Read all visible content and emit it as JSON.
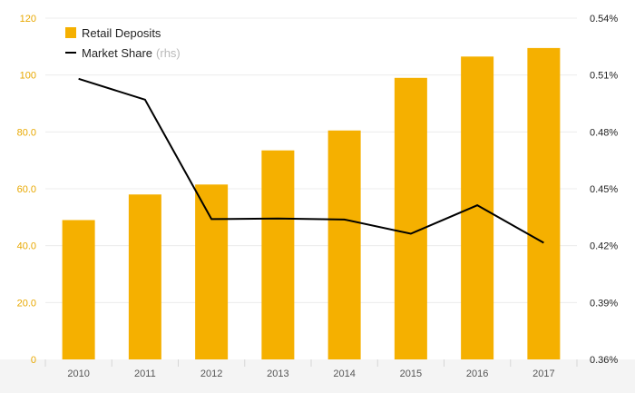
{
  "chart_data": {
    "type": "bar",
    "categories": [
      "2010",
      "2011",
      "2012",
      "2013",
      "2014",
      "2015",
      "2016",
      "2017"
    ],
    "series": [
      {
        "name": "Retail Deposits",
        "type": "bar",
        "axis": "left",
        "color": "#f5b000",
        "values": [
          49,
          58,
          61.5,
          73.5,
          80.5,
          99,
          106.5,
          109.5
        ]
      },
      {
        "name": "Market Share",
        "type": "line",
        "axis": "right",
        "color": "#000000",
        "values": [
          0.508,
          0.497,
          0.434,
          0.4343,
          0.4338,
          0.4263,
          0.4413,
          0.4215
        ]
      }
    ],
    "legend_note": "(rhs)",
    "left_axis": {
      "range": [
        0,
        120
      ],
      "ticks": [
        0,
        20,
        40,
        60,
        80,
        100,
        120
      ],
      "tick_labels": [
        "0",
        "20.0",
        "40.0",
        "60.0",
        "80.0",
        "100",
        "120"
      ],
      "label_color": "#e8a800"
    },
    "right_axis": {
      "range": [
        0.36,
        0.54
      ],
      "ticks": [
        0.36,
        0.39,
        0.42,
        0.45,
        0.48,
        0.51,
        0.54
      ],
      "tick_labels": [
        "0.36%",
        "0.39%",
        "0.42%",
        "0.45%",
        "0.48%",
        "0.51%",
        "0.54%"
      ]
    },
    "grid": true,
    "legend_position": "top-left",
    "background": "#ffffff",
    "x_band_color": "#f4f4f4",
    "grid_color": "#ececec"
  }
}
